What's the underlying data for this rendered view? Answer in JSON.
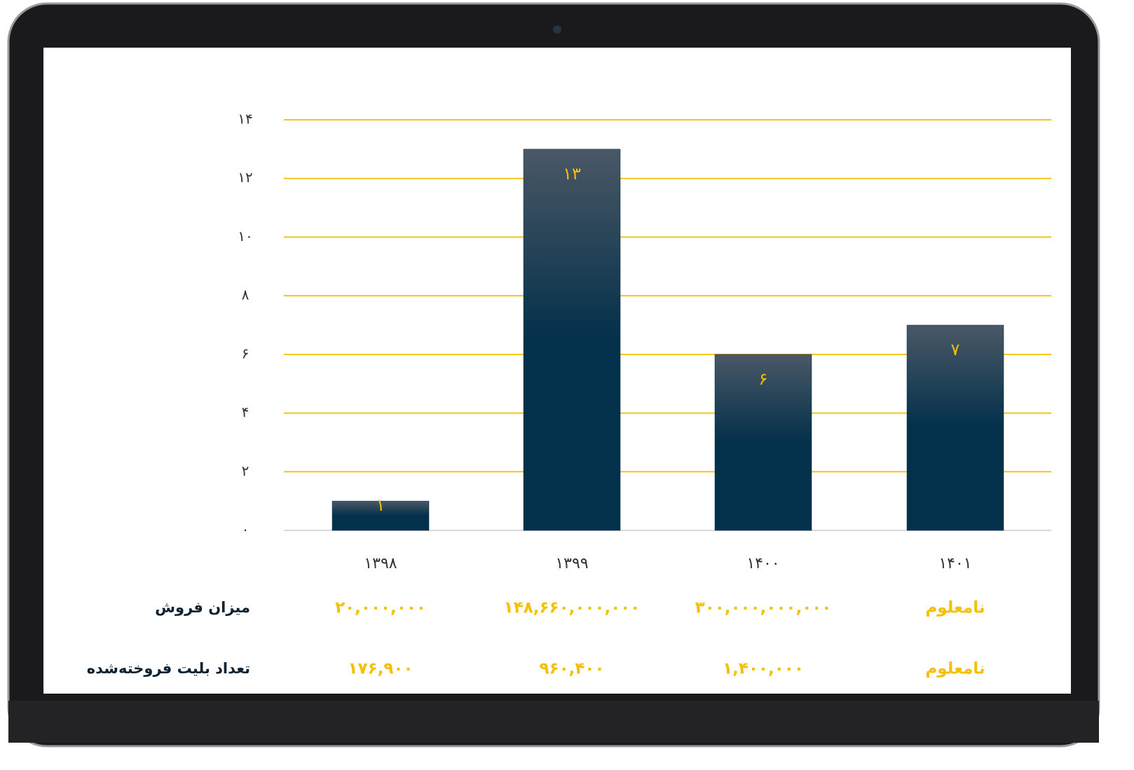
{
  "chart_data": {
    "type": "bar",
    "categories": [
      "۱۳۹۸",
      "۱۳۹۹",
      "۱۴۰۰",
      "۱۴۰۱"
    ],
    "values": [
      1,
      13,
      6,
      7
    ],
    "value_labels": [
      "۱",
      "۱۳",
      "۶",
      "۷"
    ],
    "color": "#03304a",
    "label_color": "#f5c000",
    "ylim": [
      0,
      14
    ],
    "yticks": [
      {
        "value": 0,
        "label": "۰"
      },
      {
        "value": 2,
        "label": "۲"
      },
      {
        "value": 4,
        "label": "۴"
      },
      {
        "value": 6,
        "label": "۶"
      },
      {
        "value": 8,
        "label": "۸"
      },
      {
        "value": 10,
        "label": "۱۰"
      },
      {
        "value": 12,
        "label": "۱۲"
      },
      {
        "value": 14,
        "label": "۱۴"
      }
    ],
    "grid": true,
    "grid_color": "#f5c518"
  },
  "table": {
    "rows": [
      {
        "label": "میزان فروش",
        "cells": [
          "۲۰,۰۰۰,۰۰۰",
          "۱۴۸,۶۶۰,۰۰۰,۰۰۰",
          "۳۰۰,۰۰۰,۰۰۰,۰۰۰",
          "نامعلوم"
        ]
      },
      {
        "label": "تعداد بلیت فروخته‌شده",
        "cells": [
          "۱۷۶,۹۰۰",
          "۹۶۰,۴۰۰",
          "۱,۴۰۰,۰۰۰",
          "نامعلوم"
        ]
      }
    ]
  }
}
